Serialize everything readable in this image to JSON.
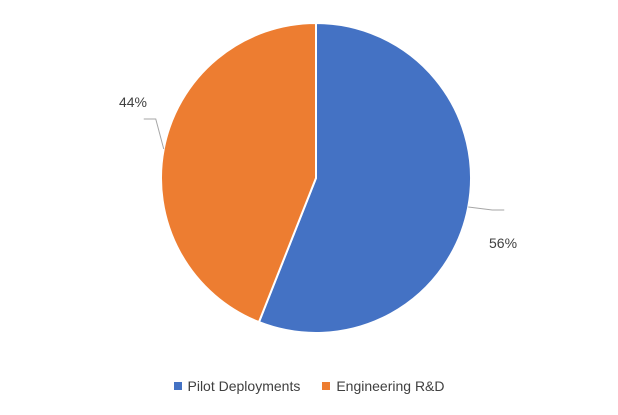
{
  "chart_data": {
    "type": "pie",
    "slices": [
      {
        "name": "Pilot Deployments",
        "value": 56,
        "label": "56%",
        "color": "#4472C4"
      },
      {
        "name": "Engineering R&D",
        "value": 44,
        "label": "44%",
        "color": "#ED7D31"
      }
    ],
    "legend_position": "bottom"
  }
}
